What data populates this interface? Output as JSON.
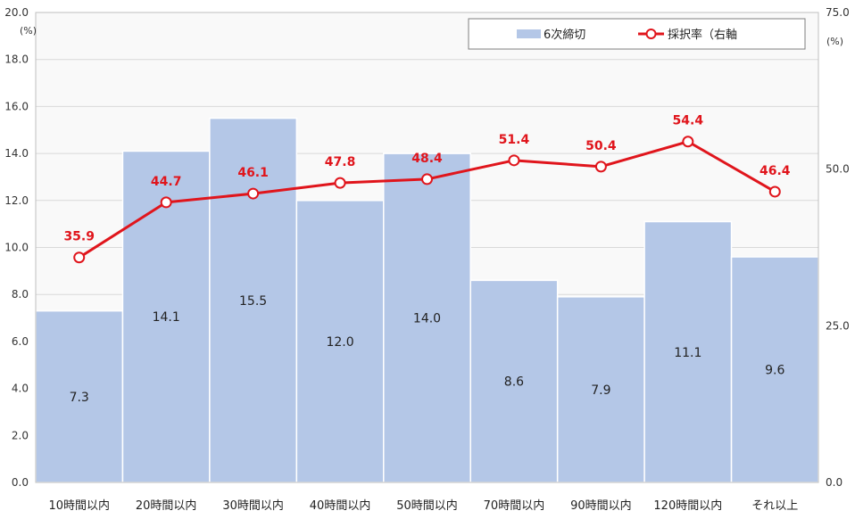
{
  "chart_data": {
    "type": "bar",
    "categories": [
      "10時間以内",
      "20時間以内",
      "30時間以内",
      "40時間以内",
      "50時間以内",
      "70時間以内",
      "90時間以内",
      "120時間以内",
      "それ以上"
    ],
    "series": [
      {
        "name": "6次締切",
        "type": "bar",
        "axis": "left",
        "values": [
          7.3,
          14.1,
          15.5,
          12.0,
          14.0,
          8.6,
          7.9,
          11.1,
          9.6
        ],
        "labels": [
          "7.3",
          "14.1",
          "15.5",
          "12.0",
          "14.0",
          "8.6",
          "7.9",
          "11.1",
          "9.6"
        ],
        "color": "#b4c7e7"
      },
      {
        "name": "採択率（右軸",
        "type": "line",
        "axis": "right",
        "values": [
          35.9,
          44.7,
          46.1,
          47.8,
          48.4,
          51.4,
          50.4,
          54.4,
          46.4
        ],
        "labels": [
          "35.9",
          "44.7",
          "46.1",
          "47.8",
          "48.4",
          "51.4",
          "50.4",
          "54.4",
          "46.4"
        ],
        "color": "#e0151c"
      }
    ],
    "y_left": {
      "lim": [
        0,
        20
      ],
      "ticks": [
        "0.0",
        "2.0",
        "4.0",
        "6.0",
        "8.0",
        "10.0",
        "12.0",
        "14.0",
        "16.0",
        "18.0",
        "20.0"
      ],
      "unit": "(%)"
    },
    "y_right": {
      "lim": [
        0,
        75
      ],
      "ticks": [
        "0.0",
        "25.0",
        "50.0",
        "75.0"
      ],
      "unit": "(%)"
    },
    "grid": true,
    "legend": "top-right",
    "plot_background": "#f9f9f9"
  }
}
